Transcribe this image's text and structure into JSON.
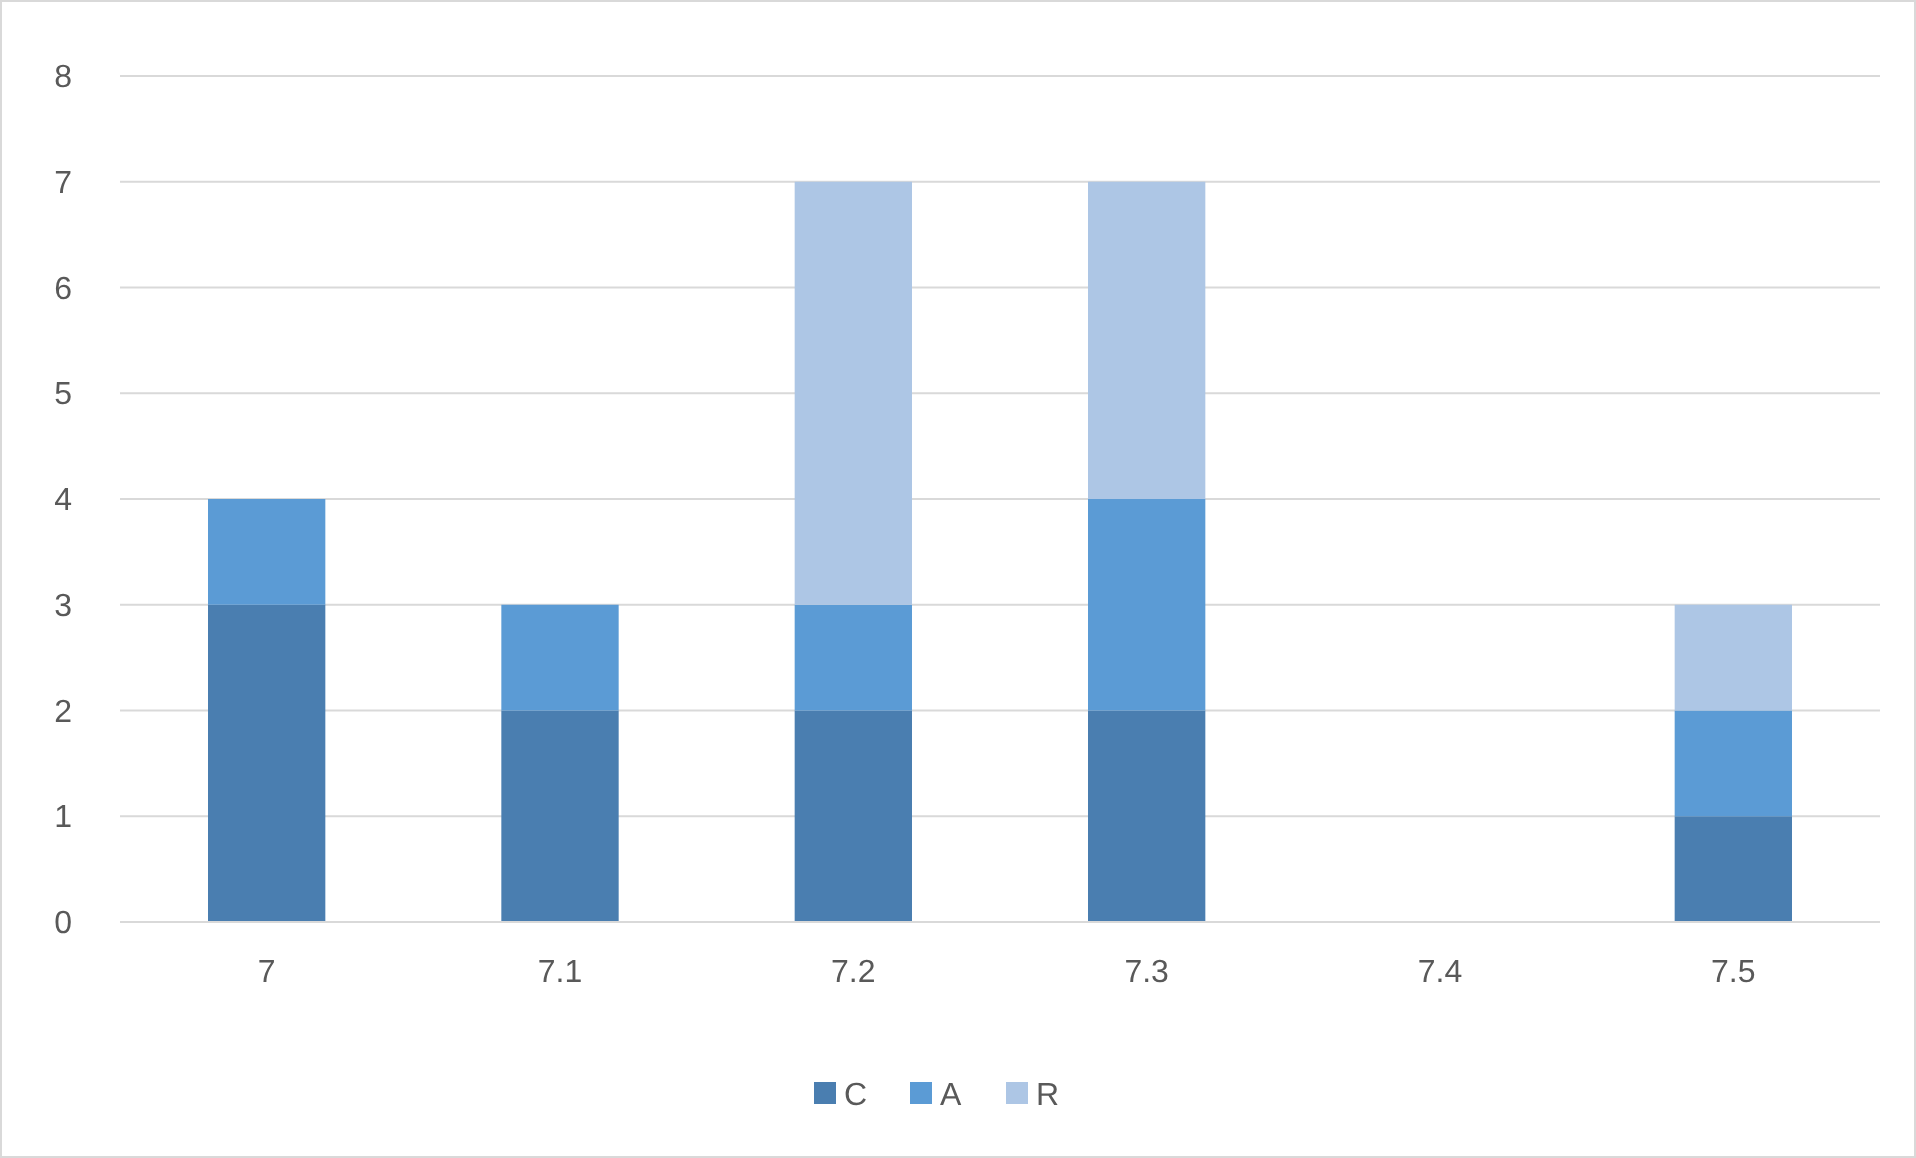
{
  "chart_data": {
    "type": "bar",
    "stacked": true,
    "categories": [
      "7",
      "7.1",
      "7.2",
      "7.3",
      "7.4",
      "7.5"
    ],
    "series": [
      {
        "name": "C",
        "color": "#4a7eb0",
        "values": [
          3,
          2,
          2,
          2,
          null,
          1
        ]
      },
      {
        "name": "A",
        "color": "#5b9bd5",
        "values": [
          1,
          1,
          1,
          2,
          null,
          1
        ]
      },
      {
        "name": "R",
        "color": "#adc6e5",
        "values": [
          null,
          null,
          4,
          3,
          null,
          1
        ]
      }
    ],
    "ylim": [
      0,
      8
    ],
    "yticks": [
      0,
      1,
      2,
      3,
      4,
      5,
      6,
      7,
      8
    ],
    "grid": "y",
    "legend": "bottom"
  }
}
